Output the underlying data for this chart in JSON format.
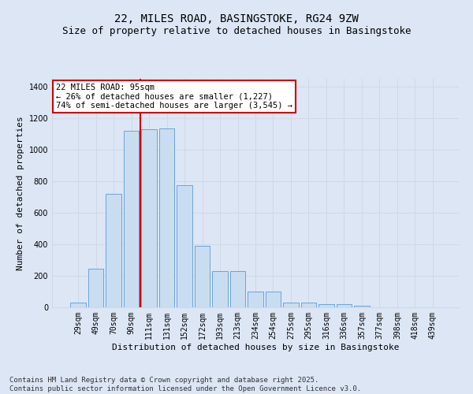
{
  "title_line1": "22, MILES ROAD, BASINGSTOKE, RG24 9ZW",
  "title_line2": "Size of property relative to detached houses in Basingstoke",
  "xlabel": "Distribution of detached houses by size in Basingstoke",
  "ylabel": "Number of detached properties",
  "categories": [
    "29sqm",
    "49sqm",
    "70sqm",
    "90sqm",
    "111sqm",
    "131sqm",
    "152sqm",
    "172sqm",
    "193sqm",
    "213sqm",
    "234sqm",
    "254sqm",
    "275sqm",
    "295sqm",
    "316sqm",
    "336sqm",
    "357sqm",
    "377sqm",
    "398sqm",
    "418sqm",
    "439sqm"
  ],
  "values": [
    30,
    245,
    720,
    1120,
    1130,
    1135,
    775,
    390,
    230,
    230,
    100,
    100,
    30,
    30,
    20,
    18,
    10,
    0,
    0,
    0,
    0
  ],
  "bar_color": "#c9ddf0",
  "bar_edge_color": "#5b9bd5",
  "grid_color": "#d0d8e8",
  "background_color": "#dce6f5",
  "vline_color": "#cc0000",
  "annotation_text": "22 MILES ROAD: 95sqm\n← 26% of detached houses are smaller (1,227)\n74% of semi-detached houses are larger (3,545) →",
  "annotation_box_color": "#cc0000",
  "ylim": [
    0,
    1450
  ],
  "yticks": [
    0,
    200,
    400,
    600,
    800,
    1000,
    1200,
    1400
  ],
  "footer_line1": "Contains HM Land Registry data © Crown copyright and database right 2025.",
  "footer_line2": "Contains public sector information licensed under the Open Government Licence v3.0.",
  "title_fontsize": 10,
  "subtitle_fontsize": 9,
  "axis_label_fontsize": 8,
  "tick_fontsize": 7,
  "annotation_fontsize": 7.5,
  "footer_fontsize": 6.5
}
